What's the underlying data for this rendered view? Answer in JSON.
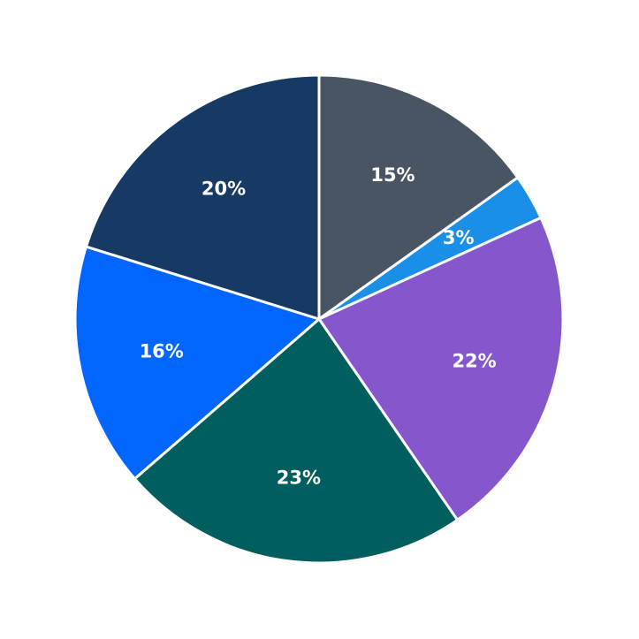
{
  "chart_data": {
    "type": "pie",
    "values": [
      15,
      3,
      22,
      23,
      16,
      20
    ],
    "value_labels": [
      "15%",
      "3%",
      "22%",
      "23%",
      "16%",
      "20%"
    ],
    "colors": [
      "#4a5563",
      "#1a8fe8",
      "#8657cc",
      "#005f5e",
      "#0066ff",
      "#163a63"
    ]
  }
}
